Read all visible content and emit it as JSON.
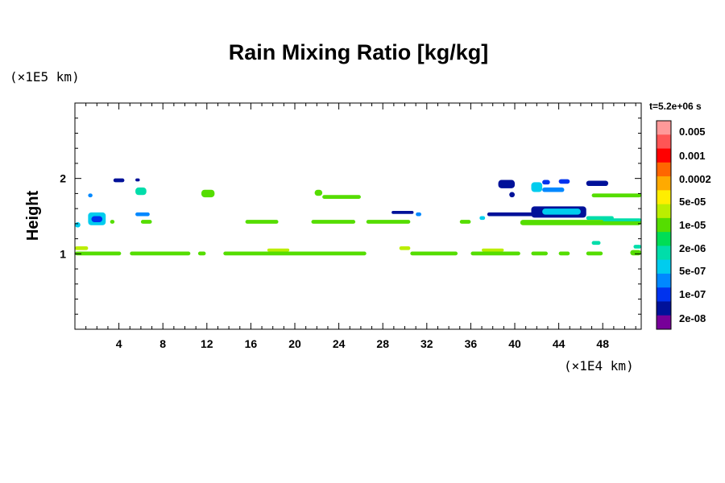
{
  "chart_data": {
    "type": "heatmap",
    "title": "Rain Mixing Ratio [kg/kg]",
    "ylabel": "Height",
    "xunit": "(×1E4 km)",
    "yunit": "(×1E5 km)",
    "time_label": "t=5.2e+06 s",
    "xlim": [
      0,
      51.5
    ],
    "ylim": [
      0,
      3
    ],
    "x_ticks": [
      4,
      8,
      12,
      16,
      20,
      24,
      28,
      32,
      36,
      40,
      44,
      48
    ],
    "y_ticks": [
      1,
      2
    ],
    "colorbar": {
      "labels": [
        "0.005",
        "0.001",
        "0.0002",
        "5e-05",
        "1e-05",
        "2e-06",
        "5e-07",
        "1e-07",
        "2e-08"
      ],
      "colors": [
        "#ff9999",
        "#ff5555",
        "#ff0000",
        "#ff6600",
        "#ffaa00",
        "#ffee00",
        "#bbee00",
        "#55dd00",
        "#00dd55",
        "#00ddaa",
        "#00ccee",
        "#0088ff",
        "#0033ee",
        "#001199",
        "#770099"
      ]
    },
    "regions": [
      {
        "x0": 0,
        "x1": 4.2,
        "y0": 0.98,
        "y1": 1.03,
        "color": "#55dd00"
      },
      {
        "x0": 0,
        "x1": 1.2,
        "y0": 1.05,
        "y1": 1.1,
        "color": "#bbee00"
      },
      {
        "x0": 5,
        "x1": 10.5,
        "y0": 0.98,
        "y1": 1.03,
        "color": "#55dd00"
      },
      {
        "x0": 11.2,
        "x1": 11.9,
        "y0": 0.98,
        "y1": 1.03,
        "color": "#55dd00"
      },
      {
        "x0": 13.5,
        "x1": 26.5,
        "y0": 0.98,
        "y1": 1.03,
        "color": "#55dd00"
      },
      {
        "x0": 17.5,
        "x1": 19.5,
        "y0": 1.03,
        "y1": 1.07,
        "color": "#bbee00"
      },
      {
        "x0": 29.5,
        "x1": 30.5,
        "y0": 1.05,
        "y1": 1.1,
        "color": "#bbee00"
      },
      {
        "x0": 30.5,
        "x1": 34.8,
        "y0": 0.98,
        "y1": 1.03,
        "color": "#55dd00"
      },
      {
        "x0": 36,
        "x1": 40.5,
        "y0": 0.98,
        "y1": 1.03,
        "color": "#55dd00"
      },
      {
        "x0": 37,
        "x1": 39,
        "y0": 1.03,
        "y1": 1.07,
        "color": "#bbee00"
      },
      {
        "x0": 41.5,
        "x1": 43,
        "y0": 0.98,
        "y1": 1.03,
        "color": "#55dd00"
      },
      {
        "x0": 44,
        "x1": 45,
        "y0": 0.98,
        "y1": 1.03,
        "color": "#55dd00"
      },
      {
        "x0": 46.5,
        "x1": 48,
        "y0": 0.98,
        "y1": 1.03,
        "color": "#55dd00"
      },
      {
        "x0": 50.5,
        "x1": 51.5,
        "y0": 0.98,
        "y1": 1.05,
        "color": "#55dd00"
      },
      {
        "x0": 50.8,
        "x1": 51.5,
        "y0": 1.07,
        "y1": 1.12,
        "color": "#00ddaa"
      },
      {
        "x0": 1.2,
        "x1": 2.8,
        "y0": 1.38,
        "y1": 1.55,
        "color": "#00ccee"
      },
      {
        "x0": 1.5,
        "x1": 2.5,
        "y0": 1.42,
        "y1": 1.5,
        "color": "#0033ee"
      },
      {
        "x0": 0,
        "x1": 0.5,
        "y0": 1.35,
        "y1": 1.42,
        "color": "#00ccee"
      },
      {
        "x0": 1.2,
        "x1": 1.6,
        "y0": 1.75,
        "y1": 1.8,
        "color": "#0088ff"
      },
      {
        "x0": 3.2,
        "x1": 3.6,
        "y0": 1.4,
        "y1": 1.45,
        "color": "#55dd00"
      },
      {
        "x0": 5.5,
        "x1": 6.5,
        "y0": 1.78,
        "y1": 1.88,
        "color": "#00ddaa"
      },
      {
        "x0": 5.5,
        "x1": 6.8,
        "y0": 1.5,
        "y1": 1.55,
        "color": "#0088ff"
      },
      {
        "x0": 6,
        "x1": 7,
        "y0": 1.4,
        "y1": 1.45,
        "color": "#55dd00"
      },
      {
        "x0": 3.5,
        "x1": 4.5,
        "y0": 1.95,
        "y1": 2.0,
        "color": "#001199"
      },
      {
        "x0": 5.5,
        "x1": 5.9,
        "y0": 1.96,
        "y1": 2.0,
        "color": "#001199"
      },
      {
        "x0": 11.5,
        "x1": 12.7,
        "y0": 1.75,
        "y1": 1.85,
        "color": "#55dd00"
      },
      {
        "x0": 15.5,
        "x1": 18.5,
        "y0": 1.4,
        "y1": 1.45,
        "color": "#55dd00"
      },
      {
        "x0": 22.5,
        "x1": 26,
        "y0": 1.73,
        "y1": 1.78,
        "color": "#55dd00"
      },
      {
        "x0": 21.8,
        "x1": 22.5,
        "y0": 1.77,
        "y1": 1.85,
        "color": "#55dd00"
      },
      {
        "x0": 21.5,
        "x1": 25.5,
        "y0": 1.4,
        "y1": 1.45,
        "color": "#55dd00"
      },
      {
        "x0": 26.5,
        "x1": 30.5,
        "y0": 1.4,
        "y1": 1.45,
        "color": "#55dd00"
      },
      {
        "x0": 28.8,
        "x1": 30.8,
        "y0": 1.53,
        "y1": 1.57,
        "color": "#001199"
      },
      {
        "x0": 31,
        "x1": 31.5,
        "y0": 1.5,
        "y1": 1.55,
        "color": "#0088ff"
      },
      {
        "x0": 35,
        "x1": 36,
        "y0": 1.4,
        "y1": 1.45,
        "color": "#55dd00"
      },
      {
        "x0": 36.8,
        "x1": 37.3,
        "y0": 1.45,
        "y1": 1.5,
        "color": "#00ccee"
      },
      {
        "x0": 38.5,
        "x1": 40,
        "y0": 1.87,
        "y1": 1.98,
        "color": "#001199"
      },
      {
        "x0": 39.5,
        "x1": 40,
        "y0": 1.75,
        "y1": 1.82,
        "color": "#001199"
      },
      {
        "x0": 41.5,
        "x1": 42.5,
        "y0": 1.82,
        "y1": 1.95,
        "color": "#00ccee"
      },
      {
        "x0": 42.5,
        "x1": 44.5,
        "y0": 1.82,
        "y1": 1.88,
        "color": "#0088ff"
      },
      {
        "x0": 42.5,
        "x1": 43.2,
        "y0": 1.92,
        "y1": 1.98,
        "color": "#0033ee"
      },
      {
        "x0": 44,
        "x1": 45,
        "y0": 1.93,
        "y1": 1.99,
        "color": "#0033ee"
      },
      {
        "x0": 46.5,
        "x1": 48.5,
        "y0": 1.9,
        "y1": 1.97,
        "color": "#001199"
      },
      {
        "x0": 47,
        "x1": 51.5,
        "y0": 1.75,
        "y1": 1.8,
        "color": "#55dd00"
      },
      {
        "x0": 37.5,
        "x1": 42.5,
        "y0": 1.5,
        "y1": 1.55,
        "color": "#001199"
      },
      {
        "x0": 41.5,
        "x1": 46.5,
        "y0": 1.48,
        "y1": 1.63,
        "color": "#001199"
      },
      {
        "x0": 42.5,
        "x1": 46,
        "y0": 1.52,
        "y1": 1.6,
        "color": "#00ccee"
      },
      {
        "x0": 46.5,
        "x1": 49,
        "y0": 1.45,
        "y1": 1.5,
        "color": "#00ddaa"
      },
      {
        "x0": 40.5,
        "x1": 51.5,
        "y0": 1.38,
        "y1": 1.45,
        "color": "#55dd00"
      },
      {
        "x0": 48,
        "x1": 51.5,
        "y0": 1.43,
        "y1": 1.47,
        "color": "#00ddaa"
      },
      {
        "x0": 47,
        "x1": 47.8,
        "y0": 1.12,
        "y1": 1.17,
        "color": "#00ddaa"
      }
    ]
  }
}
